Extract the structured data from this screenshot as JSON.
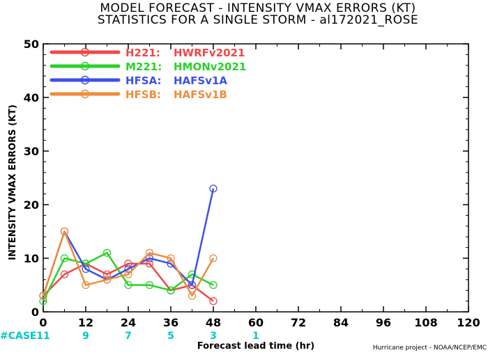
{
  "chart_data": {
    "type": "line",
    "title": [
      "MODEL FORECAST - INTENSITY VMAX ERRORS (KT)",
      "STATISTICS FOR A SINGLE STORM - al172021_ROSE"
    ],
    "xlabel": "Forecast lead time (hr)",
    "ylabel": "INTENSITY VMAX ERRORS (KT)",
    "xlim": [
      0,
      120
    ],
    "ylim": [
      0,
      50
    ],
    "xticks": [
      0,
      12,
      24,
      36,
      48,
      60,
      72,
      84,
      96,
      108,
      120
    ],
    "yticks": [
      0,
      10,
      20,
      30,
      40,
      50
    ],
    "grid": false,
    "legend_position": "top-left",
    "case_label": "#CASE",
    "cases": [
      {
        "x": 0,
        "n": "11"
      },
      {
        "x": 12,
        "n": "9"
      },
      {
        "x": 24,
        "n": "7"
      },
      {
        "x": 36,
        "n": "5"
      },
      {
        "x": 48,
        "n": "3"
      },
      {
        "x": 60,
        "n": "1"
      }
    ],
    "credit": "Hurricane project - NOAA/NCEP/EMC",
    "series": [
      {
        "name": "H221:",
        "label": "HWRFv2021",
        "color": "#f04848",
        "x": [
          0,
          6,
          12,
          18,
          24,
          30,
          36,
          42,
          48
        ],
        "values": [
          3,
          7,
          9,
          7,
          9,
          9,
          4,
          5,
          2
        ]
      },
      {
        "name": "M221:",
        "label": "HMONv2021",
        "color": "#28d228",
        "x": [
          0,
          6,
          12,
          18,
          24,
          30,
          36,
          42,
          48
        ],
        "values": [
          2,
          10,
          9,
          11,
          5,
          5,
          4,
          7,
          5
        ]
      },
      {
        "name": "HFSA:",
        "label": "HAFSv1A",
        "color": "#3c50e6",
        "x": [
          0,
          6,
          12,
          18,
          24,
          30,
          36,
          42,
          48
        ],
        "values": [
          3,
          15,
          8,
          6,
          8,
          10,
          9,
          5,
          23
        ]
      },
      {
        "name": "HFSB:",
        "label": "HAFSv1B",
        "color": "#f08c3c",
        "x": [
          0,
          6,
          12,
          18,
          24,
          30,
          36,
          42,
          48
        ],
        "values": [
          3,
          15,
          5,
          6,
          7,
          11,
          10,
          3,
          10
        ]
      }
    ]
  },
  "colors": {
    "case": "#00c8c8",
    "axis": "#000000"
  }
}
